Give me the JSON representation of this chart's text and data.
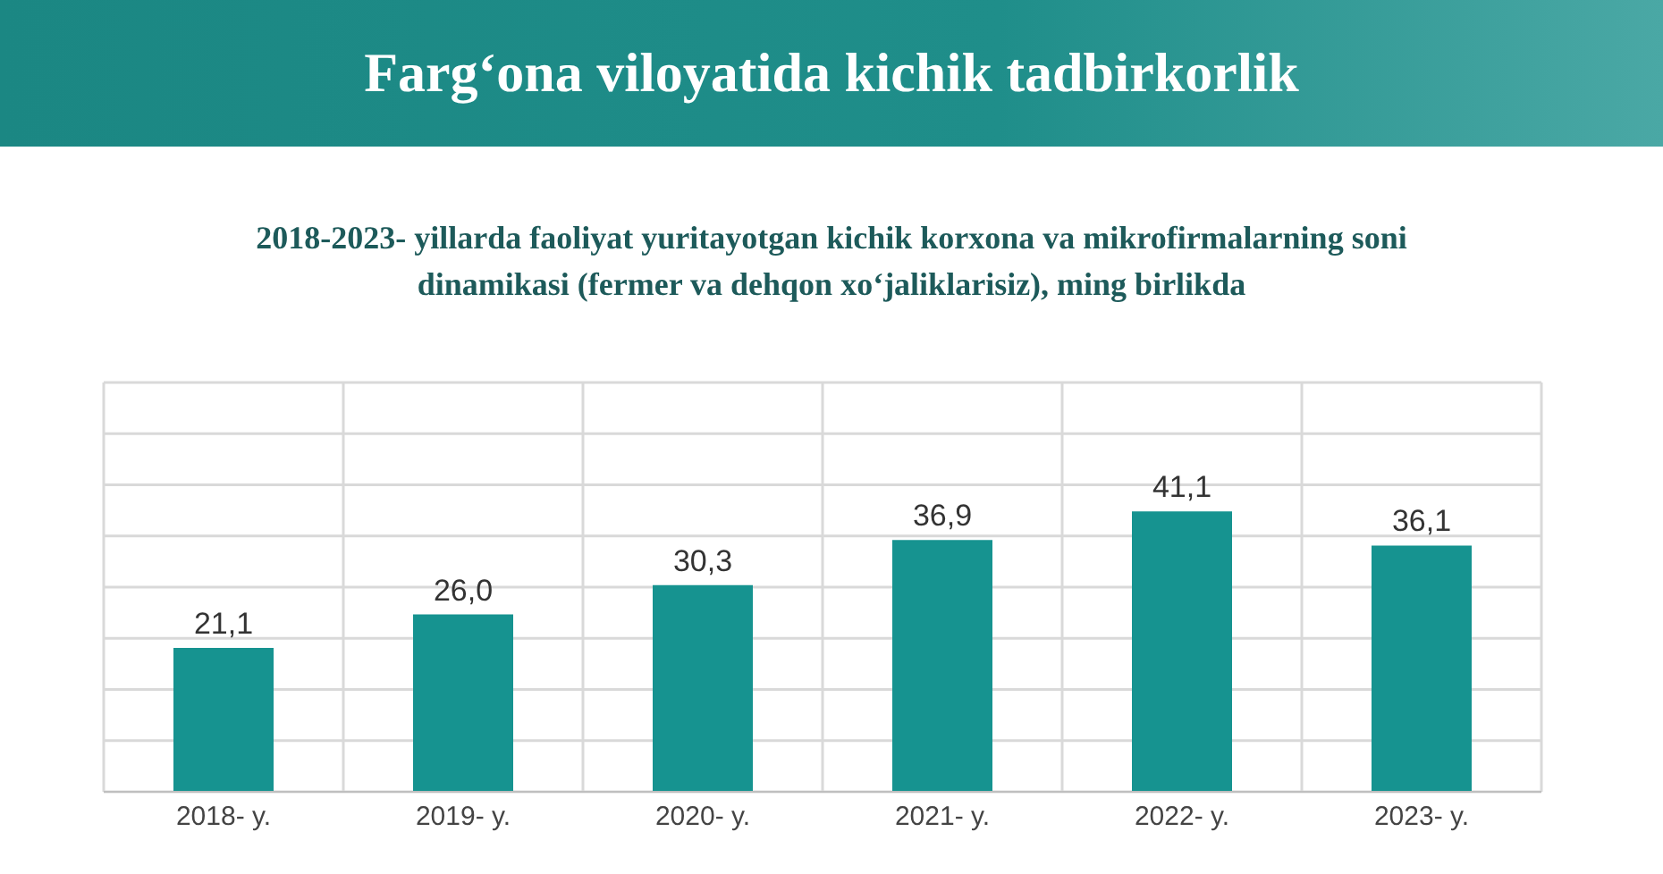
{
  "chart_data": {
    "type": "bar",
    "title": "Farg‘ona viloyatida kichik tadbirkorlik",
    "subtitle": "2018-2023- yillarda faoliyat yuritayotgan kichik korxona va mikrofirmalarning soni dinamikasi (fermer va dehqon xo‘jaliklarisiz), ming birlikda",
    "categories": [
      "2018- y.",
      "2019- y.",
      "2020- y.",
      "2021- y.",
      "2022- y.",
      "2023- y."
    ],
    "values": [
      21.1,
      26.0,
      30.3,
      36.9,
      41.1,
      36.1
    ],
    "value_labels": [
      "21,1",
      "26,0",
      "30,3",
      "36,9",
      "41,1",
      "36,1"
    ],
    "color": "#169390",
    "tick_labels": "x",
    "grid": true
  }
}
